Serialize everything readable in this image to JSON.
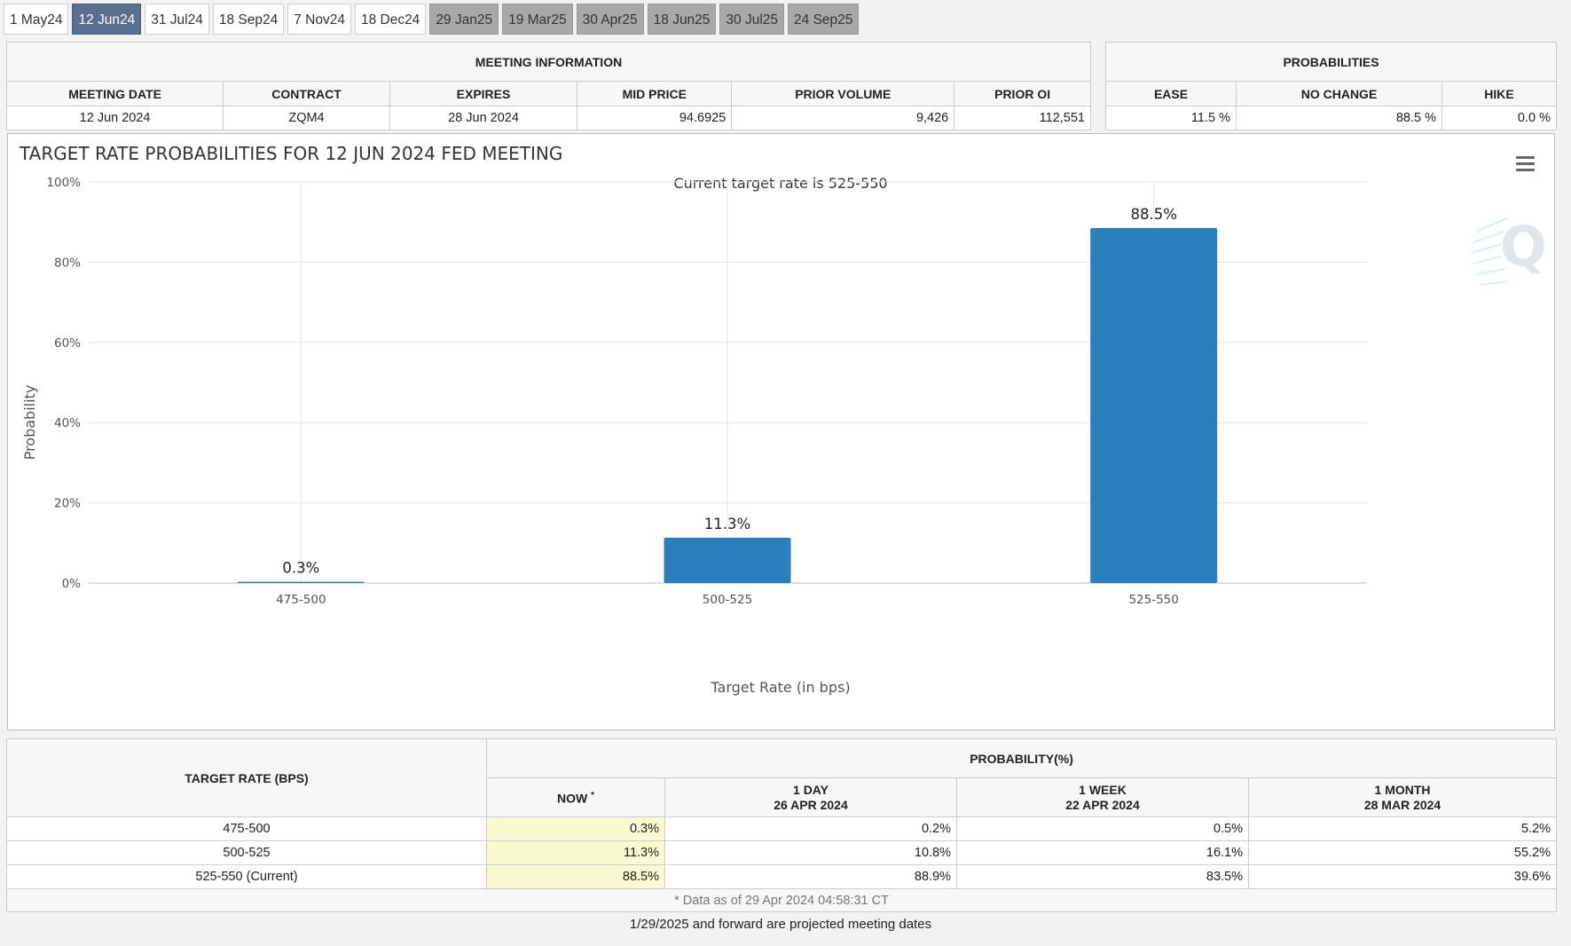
{
  "tabs": [
    {
      "label": "1 May24",
      "state": "normal"
    },
    {
      "label": "12 Jun24",
      "state": "active"
    },
    {
      "label": "31 Jul24",
      "state": "normal"
    },
    {
      "label": "18 Sep24",
      "state": "normal"
    },
    {
      "label": "7 Nov24",
      "state": "normal"
    },
    {
      "label": "18 Dec24",
      "state": "normal"
    },
    {
      "label": "29 Jan25",
      "state": "projected"
    },
    {
      "label": "19 Mar25",
      "state": "projected"
    },
    {
      "label": "30 Apr25",
      "state": "projected"
    },
    {
      "label": "18 Jun25",
      "state": "projected"
    },
    {
      "label": "30 Jul25",
      "state": "projected"
    },
    {
      "label": "24 Sep25",
      "state": "projected"
    }
  ],
  "meeting_info": {
    "title": "MEETING INFORMATION",
    "headers": [
      "MEETING DATE",
      "CONTRACT",
      "EXPIRES",
      "MID PRICE",
      "PRIOR VOLUME",
      "PRIOR OI"
    ],
    "values": [
      "12 Jun 2024",
      "ZQM4",
      "28 Jun 2024",
      "94.6925",
      "9,426",
      "112,551"
    ]
  },
  "probabilities": {
    "title": "PROBABILITIES",
    "headers": [
      "EASE",
      "NO CHANGE",
      "HIKE"
    ],
    "values": [
      "11.5 %",
      "88.5 %",
      "0.0 %"
    ]
  },
  "chart_data": {
    "type": "bar",
    "title": "TARGET RATE PROBABILITIES FOR 12 JUN 2024 FED MEETING",
    "subtitle": "Current target rate is 525-550",
    "categories": [
      "475-500",
      "500-525",
      "525-550"
    ],
    "values": [
      0.3,
      11.3,
      88.5
    ],
    "data_labels": [
      "0.3%",
      "11.3%",
      "88.5%"
    ],
    "xlabel": "Target Rate (in bps)",
    "ylabel": "Probability",
    "ylim": [
      0,
      100
    ],
    "yticks": [
      0,
      20,
      40,
      60,
      80,
      100
    ],
    "ytick_labels": [
      "0%",
      "20%",
      "40%",
      "60%",
      "80%",
      "100%"
    ],
    "bar_color": "#2a7fba",
    "grid": true,
    "legend": "none"
  },
  "history": {
    "row_header": "TARGET RATE (BPS)",
    "group_header": "PROBABILITY(%)",
    "columns": [
      {
        "line1": "NOW",
        "line2": ""
      },
      {
        "line1": "1 DAY",
        "line2": "26 APR 2024"
      },
      {
        "line1": "1 WEEK",
        "line2": "22 APR 2024"
      },
      {
        "line1": "1 MONTH",
        "line2": "28 MAR 2024"
      }
    ],
    "now_marker": "*",
    "rows": [
      {
        "rate": "475-500",
        "values": [
          "0.3%",
          "0.2%",
          "0.5%",
          "5.2%"
        ]
      },
      {
        "rate": "500-525",
        "values": [
          "11.3%",
          "10.8%",
          "16.1%",
          "55.2%"
        ]
      },
      {
        "rate": "525-550 (Current)",
        "values": [
          "88.5%",
          "88.9%",
          "83.5%",
          "39.6%"
        ]
      }
    ],
    "footnote": "* Data as of 29 Apr 2024 04:58:31 CT"
  },
  "projected_note": "1/29/2025 and forward are projected meeting dates",
  "icons": {
    "menu": "hamburger-menu-icon",
    "watermark": "quikstrike-logo"
  }
}
